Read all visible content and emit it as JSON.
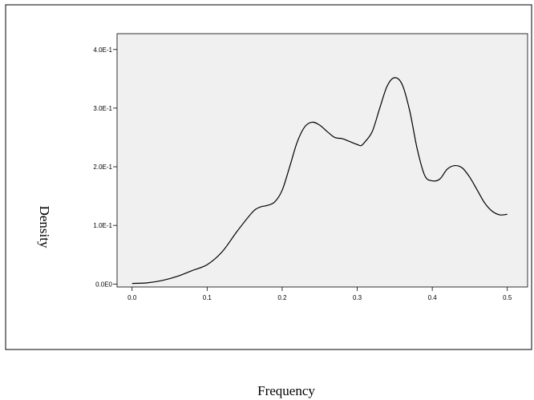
{
  "chart_data": {
    "type": "line",
    "title": "",
    "xlabel": "Frequency",
    "ylabel": "Density",
    "xlim": [
      -0.02,
      0.527
    ],
    "ylim": [
      -0.005,
      0.427
    ],
    "x_ticks": [
      {
        "value": 0.0,
        "label": "0.0"
      },
      {
        "value": 0.1,
        "label": "0.1"
      },
      {
        "value": 0.2,
        "label": "0.2"
      },
      {
        "value": 0.3,
        "label": "0.3"
      },
      {
        "value": 0.4,
        "label": "0.4"
      },
      {
        "value": 0.5,
        "label": "0.5"
      }
    ],
    "y_ticks": [
      {
        "value": 0.0,
        "label": "0.0E0"
      },
      {
        "value": 0.1,
        "label": "1.0E-1"
      },
      {
        "value": 0.2,
        "label": "2.0E-1"
      },
      {
        "value": 0.3,
        "label": "3.0E-1"
      },
      {
        "value": 0.4,
        "label": "4.0E-1"
      }
    ],
    "grid": false,
    "plot_background": "#f0f0f0",
    "line_color": "#000000",
    "series": [
      {
        "x": [
          0.0,
          0.02,
          0.04,
          0.06,
          0.08,
          0.1,
          0.12,
          0.14,
          0.16,
          0.17,
          0.18,
          0.19,
          0.2,
          0.21,
          0.22,
          0.23,
          0.24,
          0.25,
          0.26,
          0.27,
          0.28,
          0.29,
          0.3,
          0.305,
          0.31,
          0.32,
          0.33,
          0.34,
          0.35,
          0.36,
          0.37,
          0.38,
          0.39,
          0.4,
          0.41,
          0.42,
          0.43,
          0.44,
          0.45,
          0.46,
          0.47,
          0.48,
          0.49,
          0.5
        ],
        "y": [
          0.001,
          0.002,
          0.006,
          0.013,
          0.023,
          0.033,
          0.055,
          0.09,
          0.122,
          0.131,
          0.134,
          0.14,
          0.16,
          0.2,
          0.242,
          0.268,
          0.276,
          0.271,
          0.26,
          0.25,
          0.248,
          0.243,
          0.238,
          0.236,
          0.242,
          0.26,
          0.3,
          0.338,
          0.352,
          0.34,
          0.295,
          0.23,
          0.185,
          0.176,
          0.179,
          0.196,
          0.202,
          0.198,
          0.182,
          0.16,
          0.138,
          0.124,
          0.118,
          0.119
        ]
      }
    ]
  }
}
